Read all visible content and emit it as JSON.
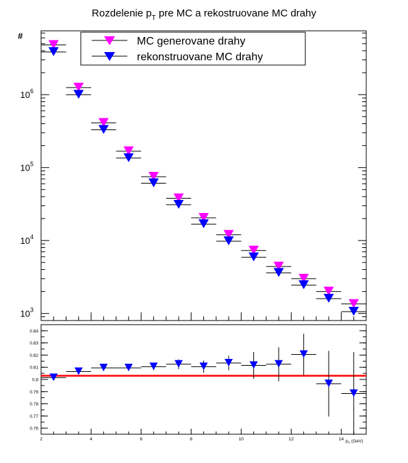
{
  "title": {
    "main": "Rozdelenie p",
    "sub": "T",
    "rest": " pre MC a rekostruovane MC drahy"
  },
  "colors": {
    "generated": "#ff00ff",
    "reconstructed": "#0000ff",
    "fit": "#ff0000",
    "axis": "#000000"
  },
  "chart_data": [
    {
      "type": "scatter",
      "title": "Rozdelenie pT pre MC a rekostruovane MC drahy",
      "ylabel": "#",
      "yscale": "log",
      "xlim": [
        2,
        15
      ],
      "ylim": [
        800,
        7500000
      ],
      "x": [
        2.5,
        3.5,
        4.5,
        5.5,
        6.5,
        7.5,
        8.5,
        9.5,
        10.5,
        11.5,
        12.5,
        13.5,
        14.5
      ],
      "xerr": 0.5,
      "y_ticks": [
        {
          "value": 1000,
          "exp": "3"
        },
        {
          "value": 10000,
          "exp": "4"
        },
        {
          "value": 100000,
          "exp": "5"
        },
        {
          "value": 1000000,
          "exp": "6"
        }
      ],
      "series": [
        {
          "name": "MC generovane drahy",
          "values": [
            4800000,
            1250000,
            410000,
            168000,
            75000,
            38000,
            20500,
            12000,
            7300,
            4400,
            3000,
            2000,
            1350
          ]
        },
        {
          "name": "rekonstruovane MC drahy",
          "values": [
            3850000,
            1000000,
            330000,
            135000,
            61000,
            31000,
            16800,
            9800,
            5900,
            3600,
            2450,
            1600,
            1060
          ]
        }
      ],
      "legend": "top"
    },
    {
      "type": "scatter",
      "xlabel": {
        "main": "p",
        "sub": "T",
        "unit": " (GeV)"
      },
      "xlim": [
        2,
        15
      ],
      "ylim": [
        0.755,
        0.845
      ],
      "x_ticks": [
        2,
        4,
        6,
        8,
        10,
        12,
        14
      ],
      "y_ticks": [
        0.76,
        0.77,
        0.78,
        0.79,
        0.8,
        0.81,
        0.82,
        0.83,
        0.84
      ],
      "x": [
        2.5,
        3.5,
        4.5,
        5.5,
        6.5,
        7.5,
        8.5,
        9.5,
        10.5,
        11.5,
        12.5,
        13.5,
        14.5
      ],
      "xerr": 0.5,
      "values": [
        0.8015,
        0.8065,
        0.8095,
        0.8095,
        0.8105,
        0.8125,
        0.8105,
        0.8135,
        0.8115,
        0.8125,
        0.8205,
        0.7965,
        0.7885
      ],
      "yerr": [
        0.0005,
        0.001,
        0.0015,
        0.002,
        0.003,
        0.004,
        0.005,
        0.006,
        0.011,
        0.014,
        0.017,
        0.027,
        0.034
      ],
      "fit": {
        "y": 0.803
      }
    }
  ]
}
